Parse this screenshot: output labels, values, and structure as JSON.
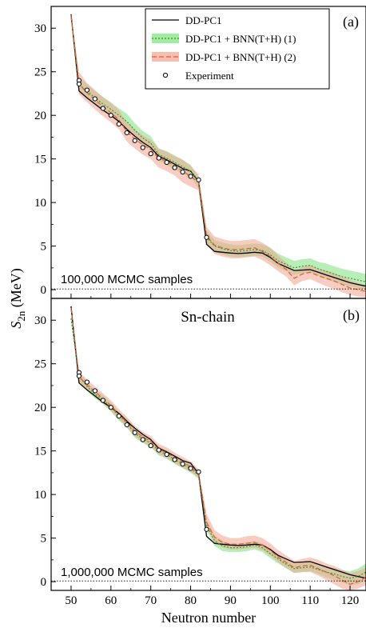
{
  "figure": {
    "ylabel_symbol": "S",
    "ylabel_subscript": "2n",
    "ylabel_unit": " (MeV)",
    "xlabel": "Neutron number"
  },
  "colors": {
    "dd_pc1": "#000000",
    "bnn1_line": "#2e9e2e",
    "bnn1_band": "#7ee27e",
    "bnn2_line": "#e05a3a",
    "bnn2_band": "#f4a38e",
    "experiment": "#000000"
  },
  "chart_data": [
    {
      "type": "line",
      "panel_label": "(a)",
      "annotation": "100,000 MCMC samples",
      "xlim": [
        45,
        124
      ],
      "ylim": [
        -1,
        32.5
      ],
      "xticks": [
        50,
        60,
        70,
        80,
        90,
        100,
        110,
        120
      ],
      "yticks": [
        0,
        5,
        10,
        15,
        20,
        25,
        30
      ],
      "legend": {
        "placement": "top-right",
        "entries": [
          "DD-PC1",
          "DD-PC1 + BNN(T+H) (1)",
          "DD-PC1 + BNN(T+H) (2)",
          "Experiment"
        ]
      },
      "x": [
        50,
        52,
        54,
        56,
        58,
        60,
        62,
        64,
        66,
        68,
        70,
        72,
        74,
        76,
        78,
        80,
        82,
        84,
        86,
        88,
        90,
        92,
        94,
        96,
        98,
        100,
        102,
        104,
        106,
        108,
        110,
        112,
        114,
        116,
        118,
        120,
        122,
        124
      ],
      "series": [
        {
          "name": "DD-PC1",
          "style": "solid",
          "values": [
            31.6,
            22.8,
            22.0,
            21.3,
            20.6,
            20.0,
            19.3,
            18.4,
            17.6,
            16.9,
            16.3,
            15.3,
            14.9,
            14.4,
            13.9,
            13.6,
            12.4,
            5.2,
            4.4,
            4.3,
            4.2,
            4.15,
            4.2,
            4.3,
            4.2,
            3.7,
            3.0,
            2.6,
            2.2,
            2.25,
            2.3,
            2.0,
            1.7,
            1.4,
            1.1,
            0.8,
            0.6,
            0.4
          ]
        },
        {
          "name": "DD-PC1 + BNN(T+H) (1)",
          "style": "dotted",
          "values": [
            31.5,
            23.5,
            22.8,
            22.0,
            21.3,
            20.7,
            20.0,
            19.3,
            18.3,
            17.4,
            16.8,
            15.5,
            15.1,
            14.6,
            14.1,
            13.6,
            12.3,
            6.0,
            5.0,
            4.7,
            4.5,
            4.4,
            4.5,
            4.6,
            4.5,
            4.0,
            3.3,
            2.9,
            2.5,
            2.7,
            2.8,
            2.4,
            2.1,
            1.8,
            1.5,
            1.3,
            1.1,
            0.9
          ],
          "band_lower": [
            31.3,
            22.6,
            22.0,
            21.2,
            20.5,
            19.9,
            19.2,
            18.4,
            17.5,
            16.6,
            16.0,
            14.8,
            14.3,
            13.8,
            13.3,
            12.9,
            11.6,
            5.2,
            4.3,
            4.0,
            3.8,
            3.7,
            3.8,
            3.9,
            3.8,
            3.2,
            2.5,
            2.1,
            1.7,
            1.9,
            2.0,
            1.6,
            1.2,
            0.9,
            0.6,
            0.4,
            0.2,
            0.0
          ],
          "band_upper": [
            31.7,
            24.4,
            23.6,
            22.8,
            22.1,
            21.5,
            20.8,
            20.2,
            19.1,
            18.2,
            17.6,
            16.2,
            15.9,
            15.4,
            14.9,
            14.3,
            13.0,
            6.8,
            5.7,
            5.4,
            5.2,
            5.1,
            5.2,
            5.3,
            5.2,
            4.8,
            4.1,
            3.7,
            3.3,
            3.5,
            3.6,
            3.2,
            3.0,
            2.7,
            2.4,
            2.2,
            2.0,
            1.8
          ]
        },
        {
          "name": "DD-PC1 + BNN(T+H) (2)",
          "style": "dashed",
          "values": [
            31.4,
            23.6,
            22.6,
            21.8,
            21.0,
            20.3,
            19.5,
            18.1,
            17.3,
            16.6,
            16.1,
            15.1,
            14.7,
            14.2,
            13.6,
            13.0,
            12.3,
            6.2,
            5.1,
            4.8,
            4.6,
            4.6,
            4.7,
            4.8,
            4.4,
            3.8,
            3.0,
            2.3,
            1.3,
            1.8,
            2.0,
            1.6,
            1.3,
            1.0,
            0.6,
            0.2,
            0.0,
            -0.2
          ],
          "band_lower": [
            31.2,
            22.4,
            21.5,
            20.7,
            19.9,
            19.2,
            18.4,
            17.0,
            16.2,
            15.5,
            15.0,
            14.0,
            13.6,
            13.1,
            12.3,
            11.8,
            11.4,
            5.2,
            4.1,
            3.8,
            3.6,
            3.6,
            3.7,
            3.8,
            3.4,
            2.8,
            2.1,
            1.5,
            0.5,
            1.0,
            1.2,
            0.8,
            0.4,
            0.1,
            -0.3,
            -0.6,
            -0.8,
            -0.9
          ],
          "band_upper": [
            31.6,
            25.0,
            23.7,
            22.9,
            22.1,
            21.4,
            20.6,
            19.2,
            18.4,
            17.7,
            17.2,
            16.2,
            15.8,
            15.3,
            14.9,
            14.2,
            13.2,
            7.2,
            6.1,
            5.8,
            5.6,
            5.6,
            5.7,
            5.8,
            5.4,
            4.8,
            3.9,
            3.1,
            2.1,
            2.6,
            2.8,
            2.4,
            2.2,
            1.9,
            1.5,
            1.1,
            0.8,
            0.5
          ]
        },
        {
          "name": "Experiment",
          "style": "markers",
          "x": [
            52,
            52,
            54,
            56,
            58,
            60,
            62,
            64,
            66,
            68,
            70,
            72,
            74,
            76,
            78,
            80,
            82,
            84
          ],
          "values": [
            24.0,
            23.6,
            22.9,
            21.9,
            20.8,
            20.0,
            19.0,
            18.0,
            17.1,
            16.3,
            15.6,
            15.1,
            14.6,
            14.0,
            13.5,
            13.0,
            12.6,
            6.0
          ]
        }
      ]
    },
    {
      "type": "line",
      "panel_label": "(b)",
      "title": "Sn-chain",
      "annotation": "1,000,000 MCMC samples",
      "xlim": [
        45,
        124
      ],
      "ylim": [
        -1,
        32.5
      ],
      "xticks": [
        50,
        60,
        70,
        80,
        90,
        100,
        110,
        120
      ],
      "yticks": [
        0,
        5,
        10,
        15,
        20,
        25,
        30
      ],
      "x": [
        50,
        52,
        54,
        56,
        58,
        60,
        62,
        64,
        66,
        68,
        70,
        72,
        74,
        76,
        78,
        80,
        82,
        84,
        86,
        88,
        90,
        92,
        94,
        96,
        98,
        100,
        102,
        104,
        106,
        108,
        110,
        112,
        114,
        116,
        118,
        120,
        122,
        124
      ],
      "series": [
        {
          "name": "DD-PC1",
          "style": "solid",
          "values": [
            31.6,
            22.8,
            22.0,
            21.3,
            20.6,
            20.0,
            19.3,
            18.4,
            17.6,
            16.9,
            16.3,
            15.3,
            14.9,
            14.4,
            13.9,
            13.6,
            12.4,
            5.2,
            4.4,
            4.3,
            4.2,
            4.15,
            4.2,
            4.3,
            4.2,
            3.7,
            3.0,
            2.6,
            2.2,
            2.25,
            2.3,
            2.0,
            1.7,
            1.4,
            1.1,
            0.8,
            0.6,
            0.4
          ]
        },
        {
          "name": "DD-PC1 + BNN(T+H) (1)",
          "style": "dotted",
          "values": [
            30.2,
            23.6,
            22.4,
            21.5,
            20.9,
            20.0,
            19.0,
            18.2,
            17.0,
            16.4,
            15.9,
            15.0,
            14.6,
            14.0,
            13.5,
            13.0,
            12.2,
            6.5,
            4.7,
            4.1,
            3.9,
            3.9,
            4.0,
            4.2,
            3.9,
            3.2,
            2.6,
            2.0,
            1.5,
            1.6,
            1.7,
            1.4,
            1.1,
            0.9,
            0.6,
            0.4,
            0.6,
            1.1
          ],
          "band_lower": [
            29.9,
            23.0,
            21.9,
            21.0,
            20.4,
            19.5,
            18.5,
            17.7,
            16.5,
            15.9,
            15.4,
            14.5,
            14.1,
            13.5,
            13.0,
            12.5,
            11.8,
            5.9,
            4.1,
            3.5,
            3.4,
            3.4,
            3.5,
            3.7,
            3.4,
            2.7,
            2.1,
            1.5,
            1.0,
            1.1,
            1.2,
            0.9,
            0.5,
            0.2,
            -0.1,
            -0.4,
            -0.3,
            0.1
          ],
          "band_upper": [
            30.5,
            24.2,
            22.9,
            22.0,
            21.4,
            20.5,
            19.5,
            18.7,
            17.5,
            16.9,
            16.4,
            15.5,
            15.1,
            14.5,
            14.0,
            13.5,
            12.6,
            7.1,
            5.3,
            4.7,
            4.4,
            4.4,
            4.5,
            4.7,
            4.4,
            3.7,
            3.1,
            2.5,
            2.0,
            2.1,
            2.2,
            1.9,
            1.7,
            1.6,
            1.3,
            1.2,
            1.5,
            2.1
          ]
        },
        {
          "name": "DD-PC1 + BNN(T+H) (2)",
          "style": "dashed",
          "values": [
            31.4,
            23.5,
            22.6,
            21.8,
            21.0,
            20.2,
            19.2,
            18.3,
            17.3,
            16.6,
            16.1,
            15.2,
            14.8,
            14.2,
            13.7,
            13.2,
            12.4,
            6.8,
            5.1,
            4.5,
            4.3,
            4.3,
            4.4,
            4.5,
            4.2,
            3.6,
            2.8,
            2.2,
            1.6,
            1.8,
            1.9,
            1.5,
            1.1,
            0.7,
            0.2,
            -0.3,
            0.0,
            0.5
          ],
          "band_lower": [
            31.2,
            22.9,
            22.0,
            21.2,
            20.4,
            19.6,
            18.6,
            17.7,
            16.7,
            16.0,
            15.5,
            14.6,
            14.2,
            13.6,
            13.1,
            12.6,
            11.9,
            6.0,
            4.5,
            3.9,
            3.7,
            3.7,
            3.8,
            3.9,
            3.6,
            3.0,
            2.2,
            1.6,
            1.0,
            1.1,
            1.1,
            0.7,
            0.2,
            -0.3,
            -0.8,
            -1.0,
            -0.8,
            -0.4
          ],
          "band_upper": [
            31.6,
            24.1,
            23.2,
            22.4,
            21.6,
            20.8,
            19.8,
            18.9,
            17.9,
            17.2,
            16.7,
            15.8,
            15.4,
            14.8,
            14.3,
            13.8,
            12.9,
            7.8,
            5.9,
            5.3,
            5.0,
            5.0,
            5.2,
            5.3,
            5.0,
            4.4,
            3.6,
            3.0,
            2.4,
            2.6,
            2.8,
            2.5,
            2.1,
            1.8,
            1.4,
            1.0,
            1.2,
            1.6
          ]
        },
        {
          "name": "Experiment",
          "style": "markers",
          "x": [
            52,
            52,
            54,
            56,
            58,
            60,
            62,
            64,
            66,
            68,
            70,
            72,
            74,
            76,
            78,
            80,
            82,
            84
          ],
          "values": [
            24.0,
            23.6,
            22.9,
            21.9,
            20.8,
            20.0,
            19.0,
            18.0,
            17.1,
            16.3,
            15.6,
            15.1,
            14.6,
            14.0,
            13.5,
            13.0,
            12.6,
            6.0
          ]
        }
      ]
    }
  ]
}
